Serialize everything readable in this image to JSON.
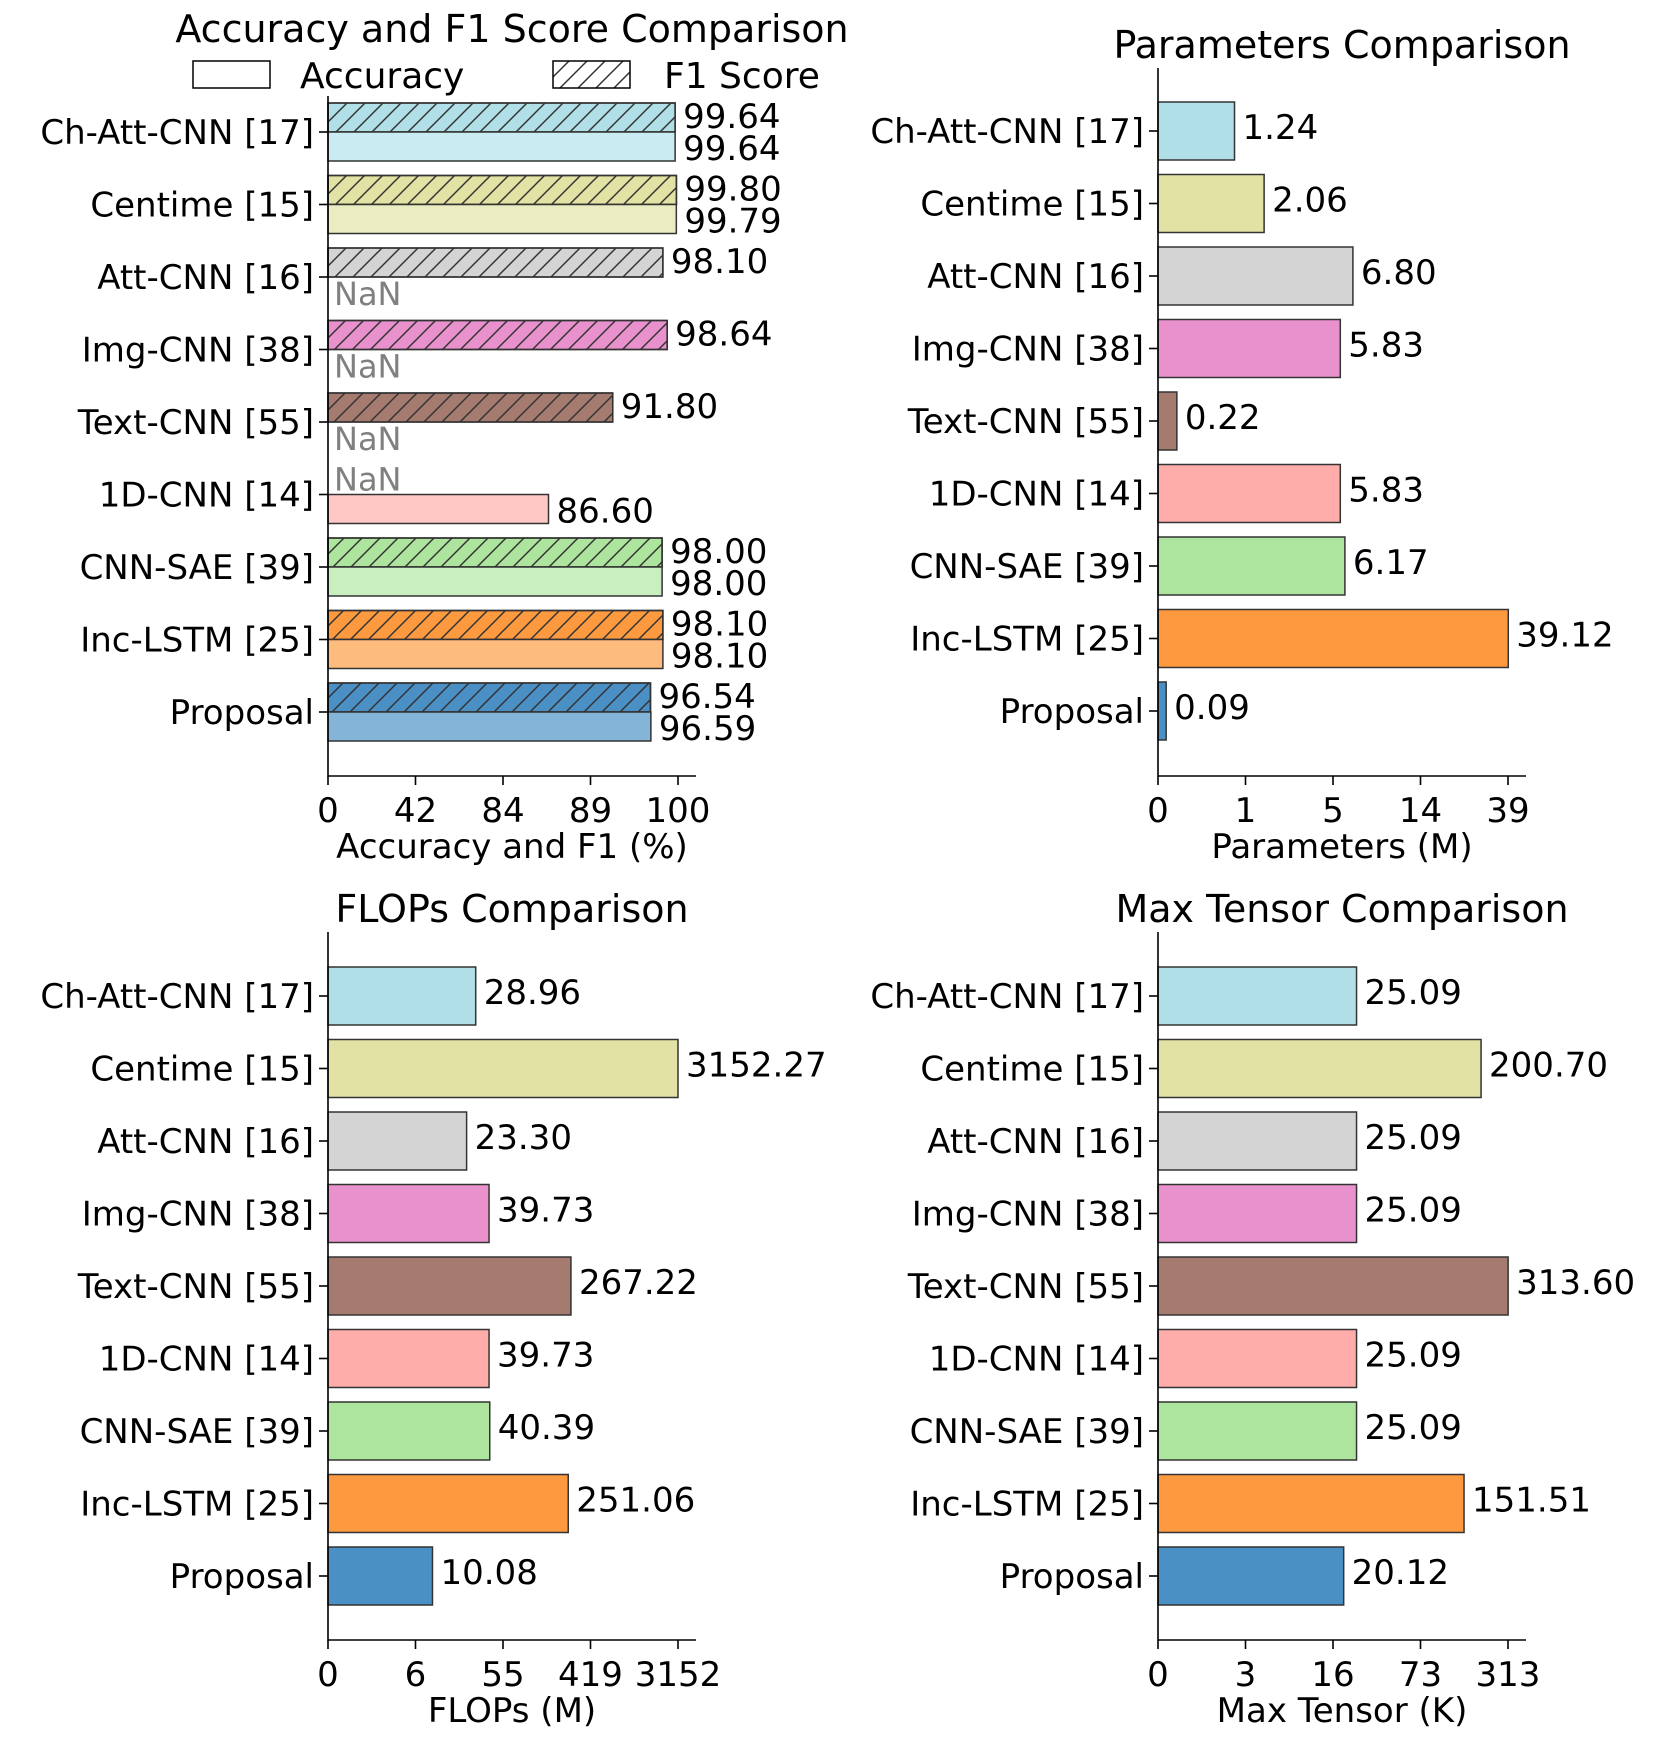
{
  "colors": [
    "#b0dfe8",
    "#e2e2a4",
    "#d4d4d4",
    "#e991cc",
    "#a57a6f",
    "#ffadaa",
    "#aee59e",
    "#fd9a3f",
    "#4b90c4"
  ],
  "accuracy_colors": [
    "#c9ebf1",
    "#ececc2",
    "#e0e0e0",
    "#f2b4dc",
    "#c9aca6",
    "#ffc8c5",
    "#c8efbd",
    "#fdbb7e",
    "#84b4d8"
  ],
  "chart_data": [
    {
      "id": "acc",
      "type": "bar",
      "orientation": "horizontal",
      "title": "Accuracy and F1 Score Comparison",
      "xlabel": "Accuracy and F1 (%)",
      "categories": [
        "Ch-Att-CNN [17]",
        "Centime [15]",
        "Att-CNN [16]",
        "Img-CNN [38]",
        "Text-CNN [55]",
        "1D-CNN [14]",
        "CNN-SAE [39]",
        "Inc-LSTM [25]",
        "Proposal"
      ],
      "xticks": [
        "0",
        "42",
        "84",
        "89",
        "100"
      ],
      "nan_label": "NaN",
      "legend": {
        "accuracy": "Accuracy",
        "f1": "F1 Score",
        "position": "top"
      },
      "series": [
        {
          "name": "F1 Score",
          "hatch": true,
          "values": [
            99.64,
            99.8,
            98.1,
            98.64,
            91.8,
            null,
            98.0,
            98.1,
            96.54
          ],
          "labels": [
            "99.64",
            "99.80",
            "98.10",
            "98.64",
            "91.80",
            "NaN",
            "98.00",
            "98.10",
            "96.54"
          ]
        },
        {
          "name": "Accuracy",
          "hatch": false,
          "values": [
            99.64,
            99.79,
            null,
            null,
            null,
            86.6,
            98.0,
            98.1,
            96.59
          ],
          "labels": [
            "99.64",
            "99.79",
            "NaN",
            "NaN",
            "NaN",
            "86.60",
            "98.00",
            "98.10",
            "96.59"
          ]
        }
      ]
    },
    {
      "id": "params",
      "type": "bar",
      "orientation": "horizontal",
      "title": "Parameters Comparison",
      "xlabel": "Parameters (M)",
      "categories": [
        "Ch-Att-CNN [17]",
        "Centime [15]",
        "Att-CNN [16]",
        "Img-CNN [38]",
        "Text-CNN [55]",
        "1D-CNN [14]",
        "CNN-SAE [39]",
        "Inc-LSTM [25]",
        "Proposal"
      ],
      "xticks": [
        "0",
        "1",
        "5",
        "14",
        "39"
      ],
      "values": [
        1.24,
        2.06,
        6.8,
        5.83,
        0.22,
        5.83,
        6.17,
        39.12,
        0.09
      ],
      "labels": [
        "1.24",
        "2.06",
        "6.80",
        "5.83",
        "0.22",
        "5.83",
        "6.17",
        "39.12",
        "0.09"
      ]
    },
    {
      "id": "flops",
      "type": "bar",
      "orientation": "horizontal",
      "title": "FLOPs Comparison",
      "xlabel": "FLOPs (M)",
      "categories": [
        "Ch-Att-CNN [17]",
        "Centime [15]",
        "Att-CNN [16]",
        "Img-CNN [38]",
        "Text-CNN [55]",
        "1D-CNN [14]",
        "CNN-SAE [39]",
        "Inc-LSTM [25]",
        "Proposal"
      ],
      "xticks": [
        "0",
        "6",
        "55",
        "419",
        "3152"
      ],
      "values": [
        28.96,
        3152.27,
        23.3,
        39.73,
        267.22,
        39.73,
        40.39,
        251.06,
        10.08
      ],
      "labels": [
        "28.96",
        "3152.27",
        "23.30",
        "39.73",
        "267.22",
        "39.73",
        "40.39",
        "251.06",
        "10.08"
      ]
    },
    {
      "id": "tensor",
      "type": "bar",
      "orientation": "horizontal",
      "title": "Max Tensor Comparison",
      "xlabel": "Max Tensor (K)",
      "categories": [
        "Ch-Att-CNN [17]",
        "Centime [15]",
        "Att-CNN [16]",
        "Img-CNN [38]",
        "Text-CNN [55]",
        "1D-CNN [14]",
        "CNN-SAE [39]",
        "Inc-LSTM [25]",
        "Proposal"
      ],
      "xticks": [
        "0",
        "3",
        "16",
        "73",
        "313"
      ],
      "values": [
        25.09,
        200.7,
        25.09,
        25.09,
        313.6,
        25.09,
        25.09,
        151.51,
        20.12
      ],
      "labels": [
        "25.09",
        "200.70",
        "25.09",
        "25.09",
        "313.60",
        "25.09",
        "25.09",
        "151.51",
        "20.12"
      ]
    }
  ]
}
